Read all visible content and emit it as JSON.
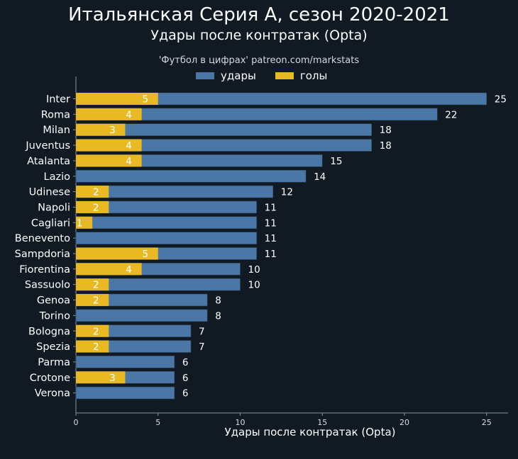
{
  "chart_data": {
    "type": "bar",
    "orientation": "horizontal",
    "stacked_overlay": true,
    "title": "Итальянская Серия А, сезон 2020-2021",
    "subtitle": "Удары после контратак (Opta)",
    "source": "'Футбол в цифрах' patreon.com/markstats",
    "xlabel": "Удары после контратак (Opta)",
    "xlim": [
      0,
      26
    ],
    "xticks": [
      0,
      5,
      10,
      15,
      20,
      25
    ],
    "categories": [
      "Inter",
      "Roma",
      "Milan",
      "Juventus",
      "Atalanta",
      "Lazio",
      "Udinese",
      "Napoli",
      "Cagliari",
      "Benevento",
      "Sampdoria",
      "Fiorentina",
      "Sassuolo",
      "Genoa",
      "Torino",
      "Bologna",
      "Spezia",
      "Parma",
      "Crotone",
      "Verona"
    ],
    "series": [
      {
        "name": "удары",
        "color": "#4a77a5",
        "values": [
          25,
          22,
          18,
          18,
          15,
          14,
          12,
          11,
          11,
          11,
          11,
          10,
          10,
          8,
          8,
          7,
          7,
          6,
          6,
          6
        ]
      },
      {
        "name": "голы",
        "color": "#e8b923",
        "values": [
          5,
          4,
          3,
          4,
          4,
          0,
          2,
          2,
          1,
          0,
          5,
          4,
          2,
          2,
          0,
          2,
          2,
          0,
          3,
          0
        ]
      }
    ],
    "legend_position": "top-center"
  }
}
